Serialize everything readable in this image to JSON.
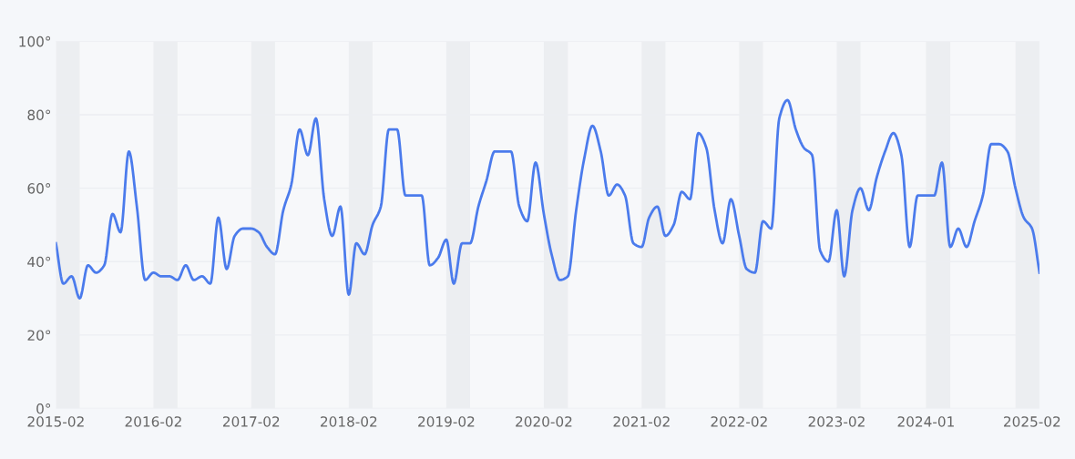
{
  "chart_data": {
    "type": "line",
    "x": [
      "2015-02",
      "2015-03",
      "2015-04",
      "2015-05",
      "2015-06",
      "2015-07",
      "2015-08",
      "2015-09",
      "2015-10",
      "2015-11",
      "2015-12",
      "2016-01",
      "2016-02",
      "2016-03",
      "2016-04",
      "2016-05",
      "2016-06",
      "2016-07",
      "2016-08",
      "2016-09",
      "2016-10",
      "2016-11",
      "2016-12",
      "2017-01",
      "2017-02",
      "2017-03",
      "2017-04",
      "2017-05",
      "2017-06",
      "2017-07",
      "2017-08",
      "2017-09",
      "2017-10",
      "2017-11",
      "2017-12",
      "2018-01",
      "2018-02",
      "2018-03",
      "2018-04",
      "2018-05",
      "2018-06",
      "2018-07",
      "2018-08",
      "2018-09",
      "2018-10",
      "2018-11",
      "2018-12",
      "2019-01",
      "2019-02",
      "2019-03",
      "2019-04",
      "2019-05",
      "2019-06",
      "2019-07",
      "2019-08",
      "2019-09",
      "2019-10",
      "2019-11",
      "2019-12",
      "2020-01",
      "2020-02",
      "2020-03",
      "2020-04",
      "2020-05",
      "2020-06",
      "2020-07",
      "2020-08",
      "2020-09",
      "2020-10",
      "2020-11",
      "2020-12",
      "2021-01",
      "2021-02",
      "2021-03",
      "2021-04",
      "2021-05",
      "2021-06",
      "2021-07",
      "2021-08",
      "2021-09",
      "2021-10",
      "2021-11",
      "2021-12",
      "2022-01",
      "2022-02",
      "2022-03",
      "2022-04",
      "2022-05",
      "2022-06",
      "2022-07",
      "2022-08",
      "2022-09",
      "2022-10",
      "2022-11",
      "2022-12",
      "2023-01",
      "2023-02",
      "2023-03",
      "2023-04",
      "2023-05",
      "2023-06",
      "2023-07",
      "2023-08",
      "2023-09",
      "2023-10",
      "2023-11",
      "2023-12",
      "2024-01",
      "2024-02",
      "2024-03",
      "2024-04",
      "2024-05",
      "2024-06",
      "2024-07",
      "2024-08",
      "2024-09",
      "2024-10",
      "2024-11",
      "2024-12",
      "2025-01",
      "2025-02",
      "2025-03"
    ],
    "series": [
      {
        "color": "#4b7bec",
        "values": [
          45,
          34,
          36,
          30,
          39,
          37,
          39,
          53,
          48,
          70,
          55,
          35,
          37,
          36,
          36,
          35,
          39,
          35,
          36,
          34,
          52,
          38,
          47,
          49,
          49,
          48,
          44,
          42,
          54,
          61,
          76,
          69,
          79,
          57,
          47,
          55,
          31,
          45,
          42,
          50,
          55,
          76,
          76,
          58,
          58,
          58,
          39,
          41,
          46,
          34,
          45,
          45,
          55,
          62,
          70,
          70,
          70,
          55,
          51,
          67,
          53,
          42,
          35,
          36,
          54,
          68,
          77,
          70,
          58,
          61,
          58,
          45,
          44,
          52,
          55,
          47,
          50,
          59,
          57,
          75,
          71,
          54,
          45,
          57,
          47,
          38,
          37,
          51,
          49,
          79,
          84,
          76,
          71,
          69,
          43,
          40,
          54,
          36,
          54,
          60,
          54,
          63,
          70,
          75,
          69,
          44,
          58,
          58,
          58,
          67,
          44,
          49,
          44,
          51,
          58,
          72,
          72,
          70,
          60,
          52,
          49,
          37
        ]
      }
    ],
    "xlim": [
      "2015-02",
      "2025-03"
    ],
    "xticks": [
      {
        "value": "2015-02",
        "label": "2015-02"
      },
      {
        "value": "2016-02",
        "label": "2016-02"
      },
      {
        "value": "2017-02",
        "label": "2017-02"
      },
      {
        "value": "2018-02",
        "label": "2018-02"
      },
      {
        "value": "2019-02",
        "label": "2019-02"
      },
      {
        "value": "2020-02",
        "label": "2020-02"
      },
      {
        "value": "2021-02",
        "label": "2021-02"
      },
      {
        "value": "2022-02",
        "label": "2022-02"
      },
      {
        "value": "2023-02",
        "label": "2023-02"
      },
      {
        "value": "2024-01",
        "label": "2024-01"
      },
      {
        "value": "2025-02",
        "label": "2025-02"
      }
    ],
    "ylim": [
      0,
      100
    ],
    "yticks": [
      {
        "value": 0,
        "label": "0°"
      },
      {
        "value": 20,
        "label": "20°"
      },
      {
        "value": 40,
        "label": "40°"
      },
      {
        "value": 60,
        "label": "60°"
      },
      {
        "value": 80,
        "label": "80°"
      },
      {
        "value": 100,
        "label": "100°"
      }
    ],
    "grid": "y",
    "marker": "none",
    "bands": [
      {
        "axis": "x",
        "from": "2015-02",
        "to": "2015-05",
        "color": "#eceef1"
      },
      {
        "axis": "x",
        "from": "2016-02",
        "to": "2016-05",
        "color": "#eceef1"
      },
      {
        "axis": "x",
        "from": "2017-02",
        "to": "2017-05",
        "color": "#eceef1"
      },
      {
        "axis": "x",
        "from": "2018-02",
        "to": "2018-05",
        "color": "#eceef1"
      },
      {
        "axis": "x",
        "from": "2019-02",
        "to": "2019-05",
        "color": "#eceef1"
      },
      {
        "axis": "x",
        "from": "2020-02",
        "to": "2020-05",
        "color": "#eceef1"
      },
      {
        "axis": "x",
        "from": "2021-02",
        "to": "2021-05",
        "color": "#eceef1"
      },
      {
        "axis": "x",
        "from": "2022-02",
        "to": "2022-05",
        "color": "#eceef1"
      },
      {
        "axis": "x",
        "from": "2023-02",
        "to": "2023-05",
        "color": "#eceef1"
      },
      {
        "axis": "x",
        "from": "2024-01",
        "to": "2024-04",
        "color": "#eceef1"
      },
      {
        "axis": "x",
        "from": "2024-12",
        "to": "2025-03",
        "color": "#eceef1"
      }
    ]
  }
}
